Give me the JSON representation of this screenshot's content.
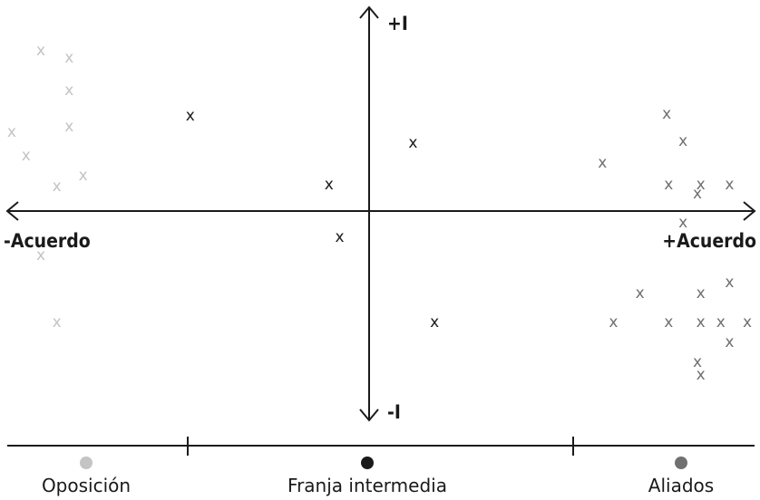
{
  "axes": {
    "y_top": "+I",
    "y_bottom": "-I",
    "x_left": "-Acuerdo",
    "x_right": "+Acuerdo"
  },
  "mark_glyph": "x",
  "groups": [
    {
      "name": "Oposición",
      "color": "#c4c4c4"
    },
    {
      "name": "Franja intermedia",
      "color": "#1a1a1a"
    },
    {
      "name": "Aliados",
      "color": "#707070"
    }
  ],
  "points": [
    {
      "group": 0,
      "x": -0.868,
      "y": 0.781
    },
    {
      "group": 0,
      "x": -0.793,
      "y": 0.746
    },
    {
      "group": 0,
      "x": -0.793,
      "y": 0.588
    },
    {
      "group": 0,
      "x": -0.793,
      "y": 0.412
    },
    {
      "group": 0,
      "x": -0.945,
      "y": 0.386
    },
    {
      "group": 0,
      "x": -0.907,
      "y": 0.272
    },
    {
      "group": 0,
      "x": -0.756,
      "y": 0.175
    },
    {
      "group": 0,
      "x": -0.826,
      "y": 0.123
    },
    {
      "group": 0,
      "x": -0.868,
      "y": -0.211
    },
    {
      "group": 0,
      "x": -0.826,
      "y": -0.535
    },
    {
      "group": 1,
      "x": -0.473,
      "y": 0.465
    },
    {
      "group": 1,
      "x": 0.116,
      "y": 0.333
    },
    {
      "group": 1,
      "x": -0.106,
      "y": 0.132
    },
    {
      "group": 1,
      "x": -0.078,
      "y": -0.123
    },
    {
      "group": 1,
      "x": 0.173,
      "y": -0.535
    },
    {
      "group": 2,
      "x": 0.787,
      "y": 0.474
    },
    {
      "group": 2,
      "x": 0.83,
      "y": 0.342
    },
    {
      "group": 2,
      "x": 0.617,
      "y": 0.237
    },
    {
      "group": 2,
      "x": 0.792,
      "y": 0.132
    },
    {
      "group": 2,
      "x": 0.877,
      "y": 0.132
    },
    {
      "group": 2,
      "x": 0.953,
      "y": 0.132
    },
    {
      "group": 2,
      "x": 0.868,
      "y": 0.088
    },
    {
      "group": 2,
      "x": 0.83,
      "y": -0.053
    },
    {
      "group": 2,
      "x": 0.953,
      "y": -0.342
    },
    {
      "group": 2,
      "x": 0.716,
      "y": -0.395
    },
    {
      "group": 2,
      "x": 0.877,
      "y": -0.395
    },
    {
      "group": 2,
      "x": 0.646,
      "y": -0.535
    },
    {
      "group": 2,
      "x": 0.792,
      "y": -0.535
    },
    {
      "group": 2,
      "x": 0.877,
      "y": -0.535
    },
    {
      "group": 2,
      "x": 0.93,
      "y": -0.535
    },
    {
      "group": 2,
      "x": 1.0,
      "y": -0.535
    },
    {
      "group": 2,
      "x": 0.953,
      "y": -0.632
    },
    {
      "group": 2,
      "x": 0.868,
      "y": -0.728
    },
    {
      "group": 2,
      "x": 0.877,
      "y": -0.789
    }
  ]
}
